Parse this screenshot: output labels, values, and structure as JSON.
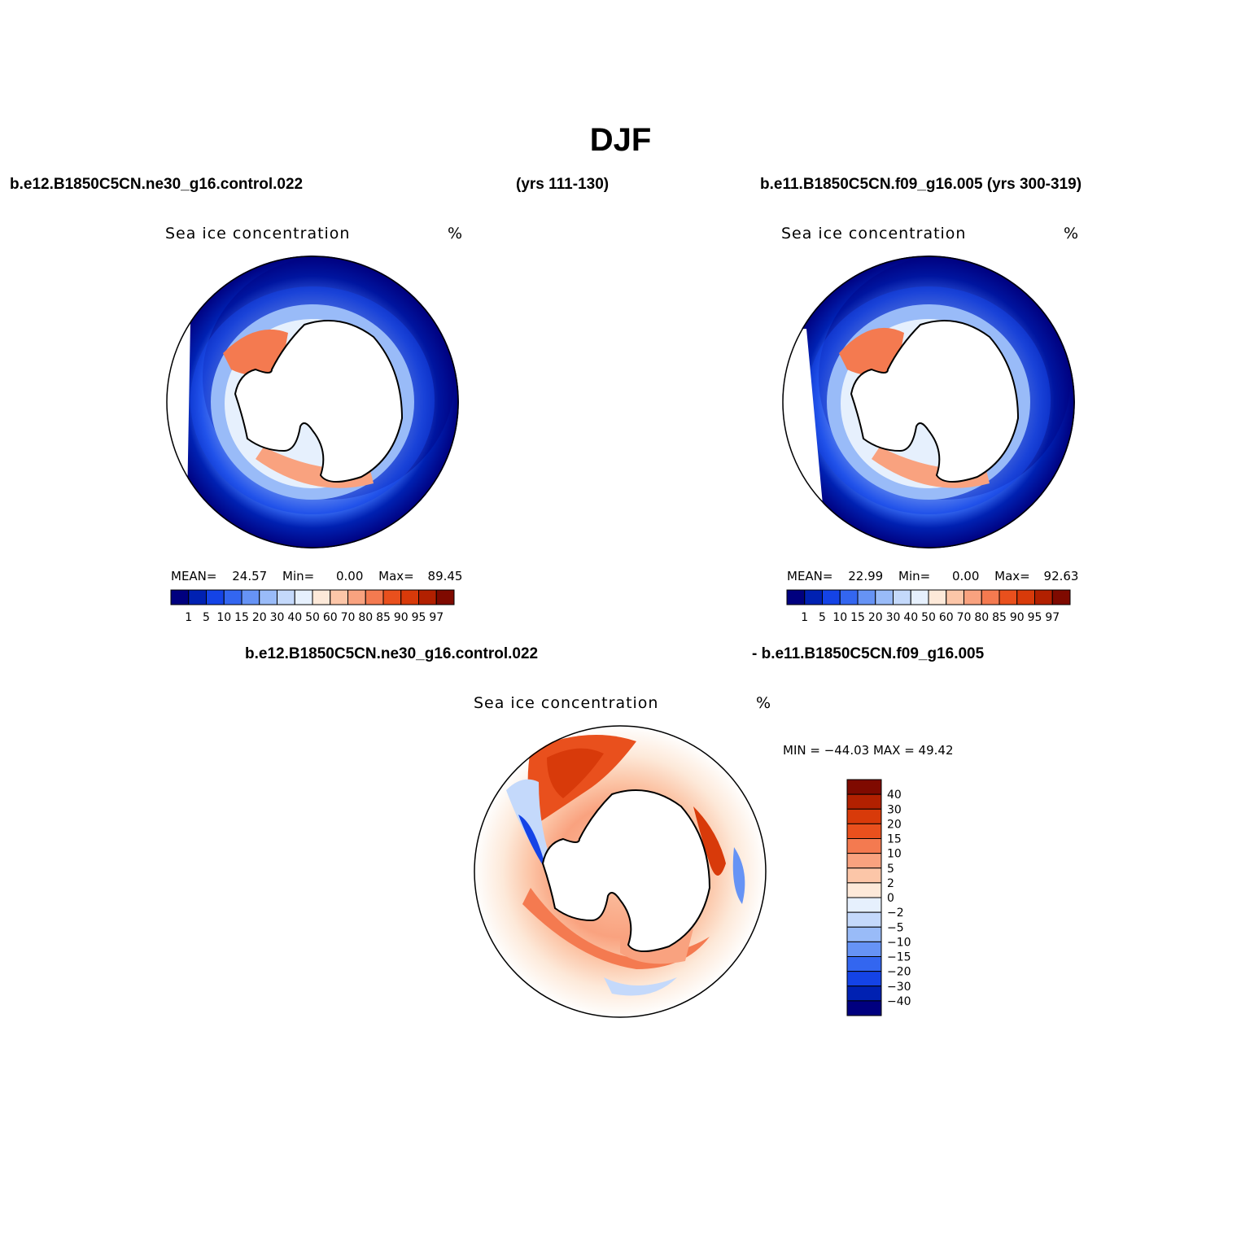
{
  "title": "DJF",
  "header": {
    "left_case": "b.e12.B1850C5CN.ne30_g16.control.022",
    "left_years": "(yrs 111-130)",
    "right_case": "b.e11.B1850C5CN.f09_g16.005 (yrs 300-319)",
    "diff_left": "b.e12.B1850C5CN.ne30_g16.control.022",
    "diff_right": "- b.e11.B1850C5CN.f09_g16.005"
  },
  "panels": [
    {
      "title": "Sea ice concentration",
      "units": "%",
      "stats": {
        "mean_label": "MEAN=",
        "mean": "24.57",
        "min_label": "Min=",
        "min": "0.00",
        "max_label": "Max=",
        "max": "89.45"
      }
    },
    {
      "title": "Sea ice concentration",
      "units": "%",
      "stats": {
        "mean_label": "MEAN=",
        "mean": "22.99",
        "min_label": "Min=",
        "min": "0.00",
        "max_label": "Max=",
        "max": "92.63"
      }
    },
    {
      "title": "Sea ice concentration",
      "units": "%",
      "stats_text": "MIN = −44.03  MAX =   49.42"
    }
  ],
  "colorbar_abs": {
    "labels": [
      "1",
      "5",
      "10",
      "15",
      "20",
      "30",
      "40",
      "50",
      "60",
      "70",
      "80",
      "85",
      "90",
      "95",
      "97"
    ],
    "colors": [
      "#00007f",
      "#0021b2",
      "#1443e6",
      "#3366f0",
      "#6693f5",
      "#99bbf8",
      "#c4d9fb",
      "#e6f0fd",
      "#fde9d9",
      "#fcc6a8",
      "#f9a27f",
      "#f47a50",
      "#e9501d",
      "#d83a0a",
      "#b22000",
      "#7f0a00"
    ]
  },
  "colorbar_diff": {
    "labels": [
      "40",
      "30",
      "20",
      "15",
      "10",
      "5",
      "2",
      "0",
      "−2",
      "−5",
      "−10",
      "−15",
      "−20",
      "−30",
      "−40"
    ],
    "colors": [
      "#7f0a00",
      "#b22000",
      "#d83a0a",
      "#e9501d",
      "#f47a50",
      "#f9a27f",
      "#fcc6a8",
      "#fde9d9",
      "#e6f0fd",
      "#c4d9fb",
      "#99bbf8",
      "#6693f5",
      "#3366f0",
      "#1443e6",
      "#0021b2",
      "#00007f"
    ]
  }
}
